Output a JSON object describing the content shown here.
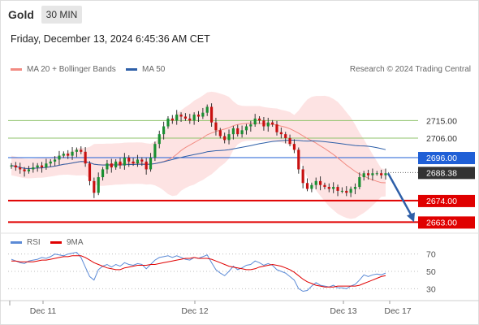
{
  "header": {
    "instrument": "Gold",
    "timeframe": "30 MIN",
    "datetime": "Friday, December 13, 2024 6:45:36 AM CET"
  },
  "legend": {
    "ma20": {
      "label": "MA 20 + Bollinger Bands",
      "color": "#f28b82"
    },
    "ma50": {
      "label": "MA 50",
      "color": "#2e5fa8"
    },
    "credit": "Research © 2024 Trading Central",
    "rsi": {
      "label": "RSI",
      "color": "#5b8ad6"
    },
    "rsi_ma": {
      "label": "9MA",
      "color": "#e00000"
    }
  },
  "chart_data": [
    {
      "type": "candlestick",
      "x_labels": [
        "Dec 11",
        "Dec 12",
        "Dec 13",
        "Dec 17"
      ],
      "ylim": [
        2659,
        2738
      ],
      "close_series": [
        2692,
        2691,
        2690,
        2689,
        2690,
        2691,
        2692,
        2691,
        2693,
        2694,
        2695,
        2697,
        2698,
        2697,
        2699,
        2700,
        2699,
        2693,
        2684,
        2678,
        2686,
        2690,
        2693,
        2691,
        2694,
        2692,
        2696,
        2694,
        2693,
        2695,
        2694,
        2690,
        2696,
        2703,
        2708,
        2712,
        2716,
        2715,
        2718,
        2717,
        2716,
        2715,
        2718,
        2717,
        2719,
        2722,
        2714,
        2710,
        2707,
        2705,
        2708,
        2711,
        2708,
        2710,
        2712,
        2713,
        2716,
        2715,
        2712,
        2714,
        2713,
        2709,
        2708,
        2706,
        2703,
        2700,
        2690,
        2683,
        2680,
        2682,
        2684,
        2682,
        2681,
        2680,
        2681,
        2679,
        2679,
        2678,
        2680,
        2681,
        2686,
        2688,
        2687,
        2688,
        2688,
        2687,
        2688
      ],
      "price_levels": [
        {
          "value": 2715.0,
          "label": "2715.00",
          "kind": "resistance",
          "color": "#8fc36b"
        },
        {
          "value": 2706.0,
          "label": "2706.00",
          "kind": "resistance",
          "color": "#8fc36b"
        },
        {
          "value": 2696.0,
          "label": "2696.00",
          "kind": "pivot",
          "color": "#1f5fd6"
        },
        {
          "value": 2688.38,
          "label": "2688.38",
          "kind": "last",
          "color": "#333333"
        },
        {
          "value": 2674.0,
          "label": "2674.00",
          "kind": "support",
          "color": "#e00000"
        },
        {
          "value": 2663.0,
          "label": "2663.00",
          "kind": "support",
          "color": "#e00000"
        }
      ],
      "forecast_arrow": {
        "from": 2688,
        "to": 2663,
        "color": "#2e5fa8"
      }
    },
    {
      "type": "line",
      "series": [
        {
          "name": "RSI",
          "values": [
            64,
            62,
            60,
            59,
            62,
            63,
            64,
            66,
            65,
            67,
            70,
            69,
            68,
            70,
            71,
            72,
            66,
            55,
            44,
            40,
            52,
            56,
            58,
            55,
            58,
            56,
            60,
            58,
            57,
            59,
            58,
            53,
            58,
            63,
            66,
            67,
            68,
            66,
            68,
            66,
            64,
            63,
            66,
            65,
            67,
            69,
            60,
            52,
            48,
            45,
            50,
            56,
            52,
            54,
            57,
            58,
            62,
            60,
            57,
            59,
            57,
            52,
            50,
            48,
            44,
            40,
            30,
            27,
            28,
            33,
            37,
            34,
            33,
            32,
            34,
            31,
            31,
            30,
            33,
            35,
            40,
            46,
            44,
            46,
            47,
            46,
            48
          ]
        },
        {
          "name": "9MA",
          "values": [
            62,
            62,
            61,
            61,
            61,
            61,
            62,
            63,
            63,
            64,
            65,
            66,
            67,
            67,
            68,
            68,
            68,
            66,
            63,
            60,
            58,
            56,
            54,
            53,
            52,
            52,
            54,
            55,
            56,
            57,
            57,
            57,
            58,
            58,
            59,
            60,
            61,
            62,
            63,
            64,
            65,
            65,
            66,
            65,
            65,
            65,
            64,
            62,
            60,
            58,
            56,
            55,
            54,
            53,
            52,
            52,
            53,
            55,
            56,
            57,
            58,
            57,
            56,
            54,
            52,
            49,
            45,
            41,
            38,
            36,
            34,
            33,
            32,
            32,
            32,
            33,
            33,
            33,
            33,
            33,
            34,
            36,
            38,
            40,
            42,
            44,
            45
          ]
        }
      ],
      "ylim": [
        20,
        80
      ],
      "y_ticks": [
        "70",
        "50",
        "30"
      ]
    }
  ]
}
